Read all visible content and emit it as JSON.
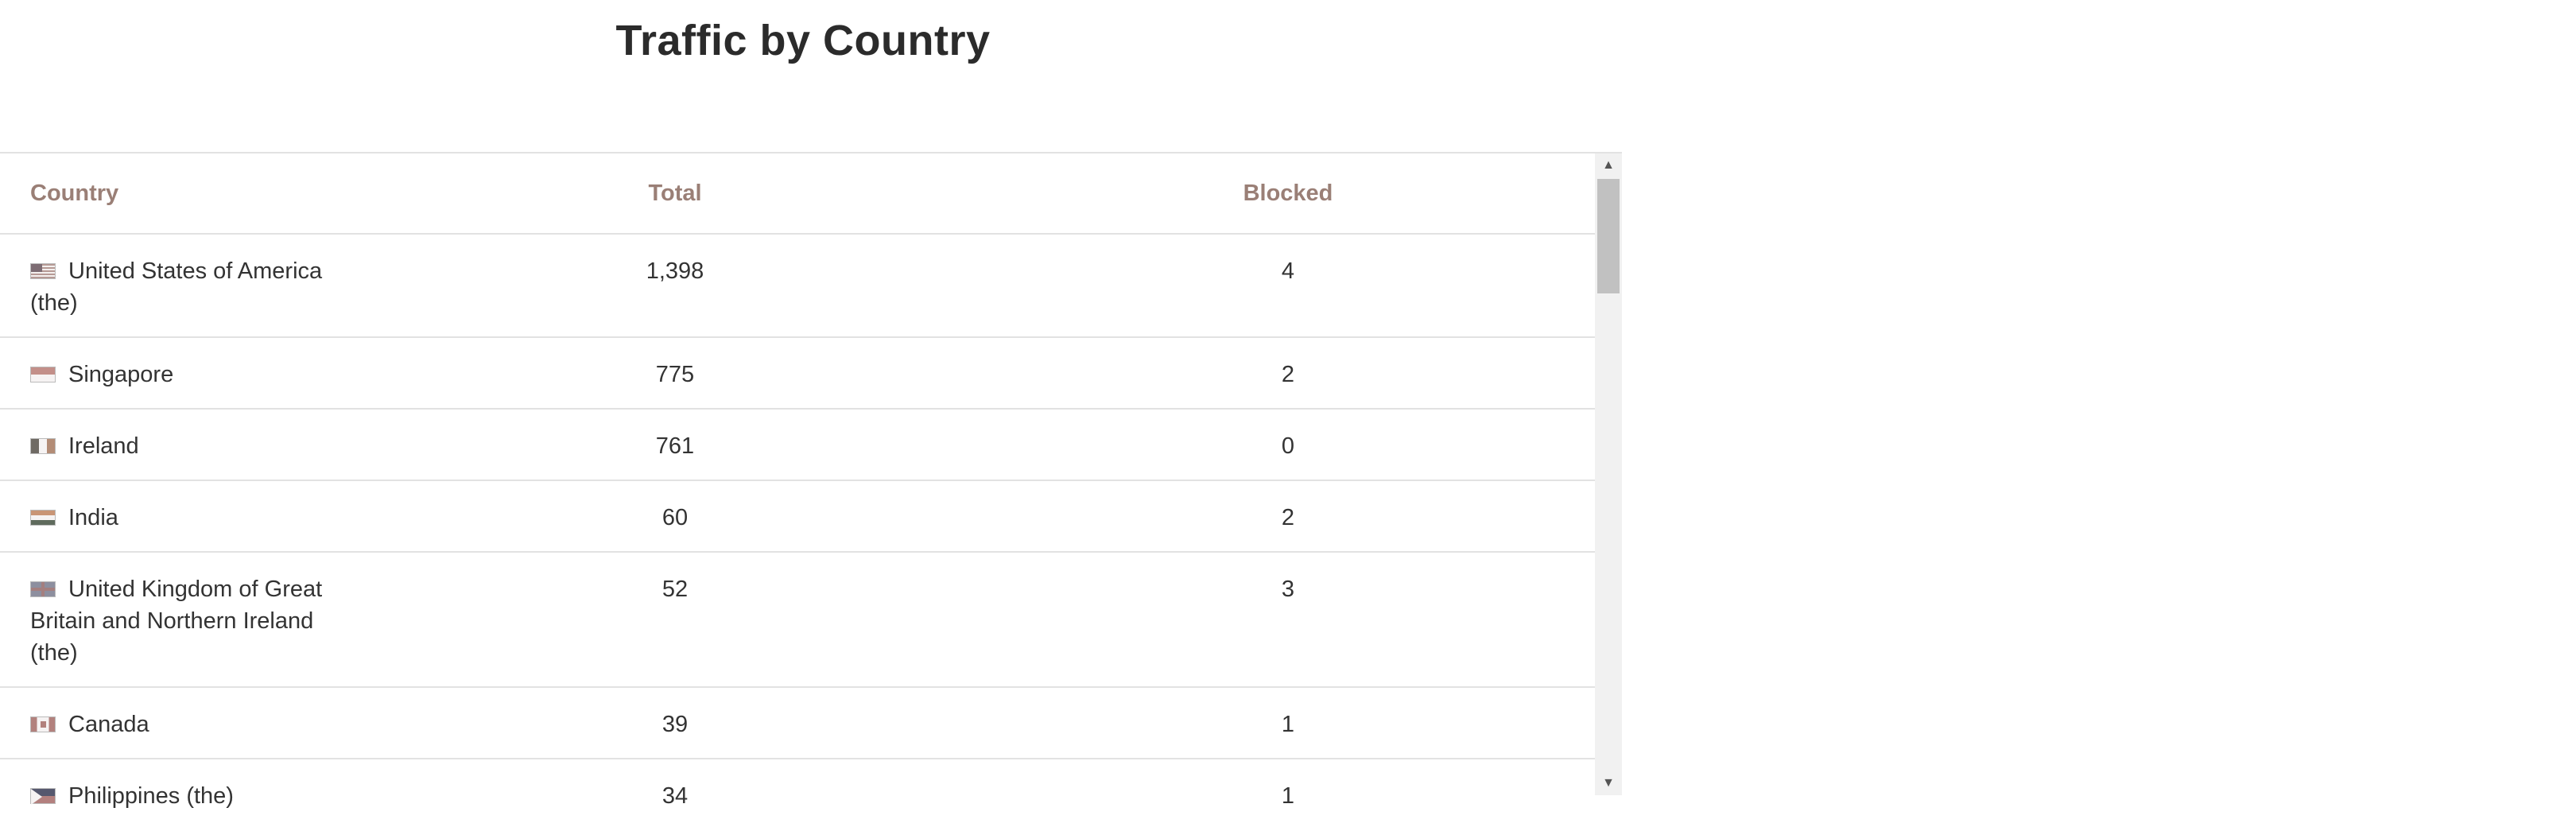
{
  "title": "Traffic by Country",
  "table": {
    "headers": {
      "country": "Country",
      "total": "Total",
      "blocked": "Blocked"
    },
    "rows": [
      {
        "flag": "us-flag-icon",
        "country": "United States of America (the)",
        "total": "1,398",
        "blocked": "4"
      },
      {
        "flag": "sg-flag-icon",
        "country": "Singapore",
        "total": "775",
        "blocked": "2"
      },
      {
        "flag": "ie-flag-icon",
        "country": "Ireland",
        "total": "761",
        "blocked": "0"
      },
      {
        "flag": "in-flag-icon",
        "country": "India",
        "total": "60",
        "blocked": "2"
      },
      {
        "flag": "gb-flag-icon",
        "country": "United Kingdom of Great Britain and Northern Ireland (the)",
        "total": "52",
        "blocked": "3"
      },
      {
        "flag": "ca-flag-icon",
        "country": "Canada",
        "total": "39",
        "blocked": "1"
      },
      {
        "flag": "ph-flag-icon",
        "country": "Philippines (the)",
        "total": "34",
        "blocked": "1"
      }
    ]
  },
  "scrollbar": {
    "up_icon": "▲",
    "down_icon": "▼"
  }
}
